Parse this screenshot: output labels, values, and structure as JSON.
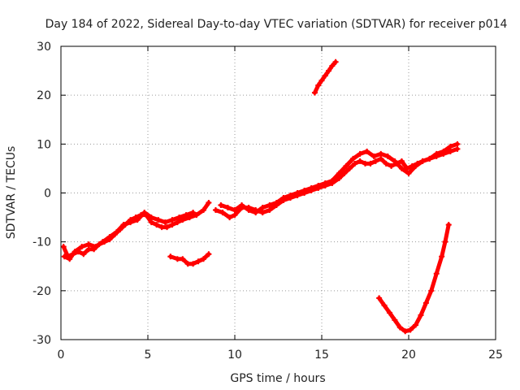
{
  "chart_data": {
    "type": "scatter",
    "title": "Day 184 of 2022, Sidereal Day-to-day VTEC variation (SDTVAR) for receiver p014",
    "xlabel": "GPS time / hours",
    "ylabel": "SDTVAR / TECUs",
    "xlim": [
      0,
      25
    ],
    "ylim": [
      -30,
      30
    ],
    "x_ticks": [
      "0",
      "5",
      "10",
      "15",
      "20",
      "25"
    ],
    "y_ticks": [
      "-30",
      "-20",
      "-10",
      "0",
      "10",
      "20",
      "30"
    ],
    "grid": true,
    "color": "#ff0000",
    "series": [
      {
        "points": [
          [
            0.15,
            -11
          ],
          [
            0.4,
            -13
          ],
          [
            0.7,
            -12.5
          ],
          [
            1.0,
            -12
          ],
          [
            1.3,
            -12.5
          ],
          [
            1.6,
            -11.5
          ],
          [
            1.9,
            -11.5
          ],
          [
            2.2,
            -10.5
          ],
          [
            2.5,
            -10
          ],
          [
            2.8,
            -9.5
          ],
          [
            3.1,
            -8.5
          ],
          [
            3.4,
            -7.5
          ],
          [
            3.7,
            -6.5
          ],
          [
            4.0,
            -5.5
          ],
          [
            4.3,
            -5
          ],
          [
            4.6,
            -4.5
          ],
          [
            4.9,
            -4.5
          ],
          [
            5.2,
            -6
          ],
          [
            5.5,
            -6.5
          ],
          [
            5.8,
            -7
          ],
          [
            6.1,
            -7
          ],
          [
            6.4,
            -6.5
          ],
          [
            6.7,
            -6
          ],
          [
            7.0,
            -5.5
          ],
          [
            7.4,
            -5
          ],
          [
            7.8,
            -4.5
          ],
          [
            8.2,
            -3.5
          ],
          [
            8.5,
            -2
          ]
        ]
      },
      {
        "points": [
          [
            0.2,
            -13
          ],
          [
            0.5,
            -13.5
          ],
          [
            0.8,
            -12
          ],
          [
            1.2,
            -11
          ],
          [
            1.6,
            -10.5
          ],
          [
            2.0,
            -11
          ],
          [
            2.4,
            -10
          ],
          [
            2.8,
            -9
          ],
          [
            3.2,
            -8
          ],
          [
            3.6,
            -6.5
          ],
          [
            4.0,
            -6
          ],
          [
            4.4,
            -5.5
          ],
          [
            4.8,
            -4
          ],
          [
            5.2,
            -5
          ],
          [
            5.6,
            -5.5
          ],
          [
            6.0,
            -6
          ],
          [
            6.4,
            -5.5
          ],
          [
            6.8,
            -5
          ],
          [
            7.2,
            -4.5
          ],
          [
            7.6,
            -4
          ]
        ]
      },
      {
        "points": [
          [
            6.3,
            -13
          ],
          [
            6.7,
            -13.5
          ],
          [
            7.0,
            -13.5
          ],
          [
            7.3,
            -14.5
          ],
          [
            7.6,
            -14.5
          ],
          [
            7.9,
            -14
          ],
          [
            8.2,
            -13.5
          ],
          [
            8.5,
            -12.5
          ]
        ]
      },
      {
        "points": [
          [
            8.9,
            -3.5
          ],
          [
            9.3,
            -4
          ],
          [
            9.7,
            -5
          ],
          [
            10.0,
            -4.5
          ],
          [
            10.4,
            -3
          ],
          [
            10.8,
            -3
          ],
          [
            11.2,
            -3.5
          ],
          [
            11.6,
            -4
          ],
          [
            12.0,
            -3.5
          ],
          [
            12.4,
            -2.5
          ],
          [
            12.8,
            -1.5
          ],
          [
            13.2,
            -1
          ],
          [
            13.6,
            -0.5
          ],
          [
            14.0,
            0
          ],
          [
            14.4,
            0.5
          ],
          [
            14.8,
            1
          ],
          [
            15.2,
            1.5
          ],
          [
            15.6,
            2
          ],
          [
            16.0,
            3
          ],
          [
            16.3,
            4
          ],
          [
            16.6,
            5
          ],
          [
            16.9,
            6
          ],
          [
            17.2,
            6.5
          ],
          [
            17.5,
            6
          ],
          [
            17.8,
            6
          ],
          [
            18.1,
            6.5
          ],
          [
            18.4,
            7
          ],
          [
            18.7,
            6
          ],
          [
            19.0,
            5.5
          ],
          [
            19.3,
            6
          ],
          [
            19.6,
            6.5
          ],
          [
            19.9,
            5
          ],
          [
            20.2,
            5.5
          ],
          [
            20.5,
            6
          ],
          [
            20.8,
            6.5
          ],
          [
            21.2,
            7
          ],
          [
            21.6,
            7.5
          ],
          [
            22.0,
            8
          ],
          [
            22.4,
            8.5
          ],
          [
            22.8,
            9
          ]
        ]
      },
      {
        "points": [
          [
            9.2,
            -2.5
          ],
          [
            9.6,
            -3
          ],
          [
            10.0,
            -3.5
          ],
          [
            10.4,
            -2.5
          ],
          [
            10.8,
            -3.5
          ],
          [
            11.2,
            -4
          ],
          [
            11.6,
            -3
          ],
          [
            12.0,
            -2.5
          ],
          [
            12.4,
            -2
          ],
          [
            12.8,
            -1
          ],
          [
            13.2,
            -0.5
          ],
          [
            13.6,
            0
          ],
          [
            14.0,
            0.5
          ],
          [
            14.4,
            1
          ],
          [
            14.8,
            1.5
          ],
          [
            15.2,
            2
          ],
          [
            15.6,
            2.5
          ],
          [
            16.0,
            4
          ],
          [
            16.4,
            5.5
          ],
          [
            16.8,
            7
          ],
          [
            17.2,
            8
          ],
          [
            17.6,
            8.5
          ],
          [
            18.0,
            7.5
          ],
          [
            18.4,
            8
          ],
          [
            18.8,
            7.5
          ],
          [
            19.2,
            6.5
          ],
          [
            19.6,
            5
          ],
          [
            20.0,
            4
          ],
          [
            20.4,
            5.5
          ],
          [
            20.8,
            6.5
          ],
          [
            21.2,
            7
          ],
          [
            21.6,
            8
          ],
          [
            22.0,
            8.5
          ],
          [
            22.4,
            9.5
          ],
          [
            22.8,
            10
          ]
        ]
      },
      {
        "points": [
          [
            14.6,
            20.5
          ],
          [
            14.8,
            22
          ],
          [
            15.0,
            23
          ],
          [
            15.2,
            24
          ],
          [
            15.4,
            25
          ],
          [
            15.6,
            26
          ],
          [
            15.8,
            26.8
          ]
        ]
      },
      {
        "points": [
          [
            18.3,
            -21.5
          ],
          [
            18.6,
            -23
          ],
          [
            18.9,
            -24.5
          ],
          [
            19.2,
            -26
          ],
          [
            19.5,
            -27.5
          ],
          [
            19.8,
            -28.3
          ],
          [
            20.1,
            -28
          ],
          [
            20.4,
            -27
          ],
          [
            20.7,
            -25
          ],
          [
            21.0,
            -22.5
          ],
          [
            21.3,
            -20
          ],
          [
            21.6,
            -16.5
          ],
          [
            21.9,
            -13
          ],
          [
            22.1,
            -10
          ],
          [
            22.3,
            -6.5
          ]
        ]
      }
    ]
  }
}
